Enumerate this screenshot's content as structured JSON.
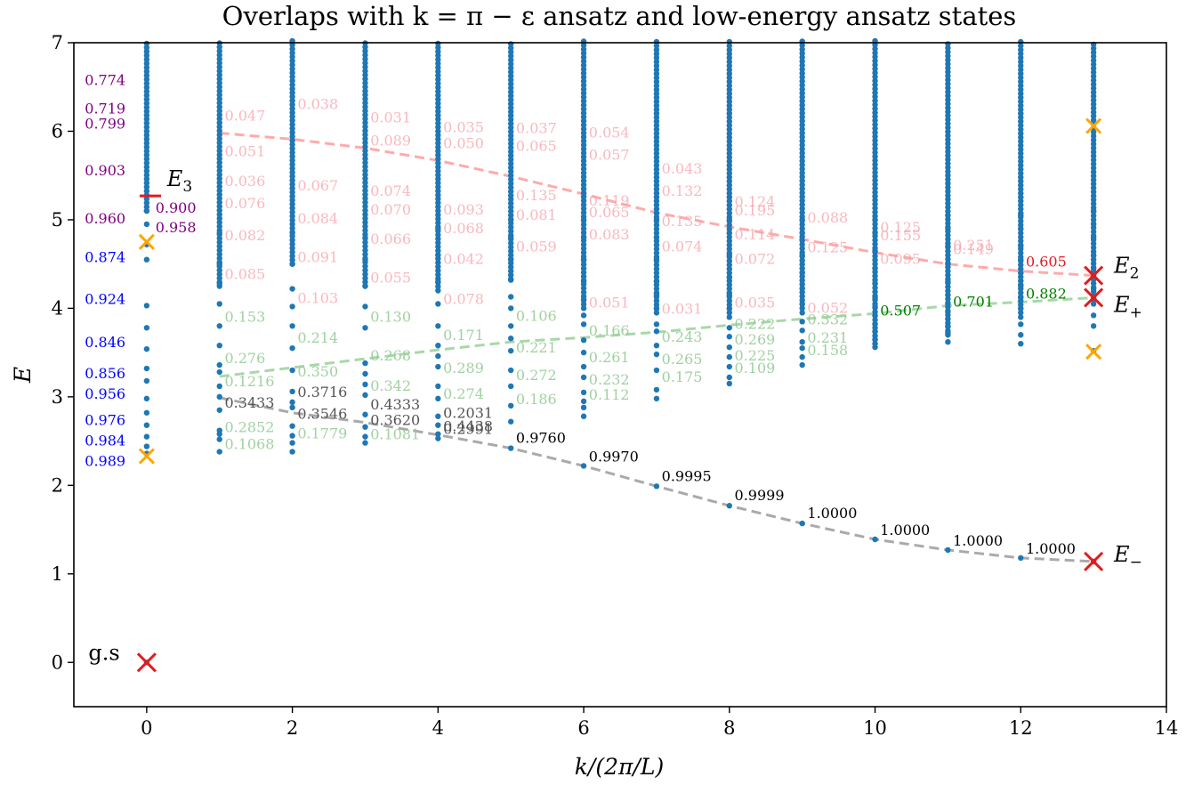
{
  "chart_data": {
    "type": "scatter",
    "title": "Overlaps with k = π − ε ansatz and low-energy ansatz states",
    "xlabel": "k/(2π/L)",
    "ylabel": "E",
    "xlim": [
      -1,
      14
    ],
    "ylim": [
      -0.5,
      7
    ],
    "x_ticks": [
      "0",
      "2",
      "4",
      "6",
      "8",
      "10",
      "12",
      "14"
    ],
    "y_ticks": [
      "0",
      "1",
      "2",
      "3",
      "4",
      "5",
      "6",
      "7"
    ],
    "grid": false,
    "colors": {
      "points": "#1f77b4",
      "red": "#e41a1c",
      "orange": "#ffa500",
      "green": "#008000",
      "blue": "#0000ff",
      "purple": "#800080",
      "pink": "#ff9999",
      "lightgreen": "#90c990",
      "gray": "#999999"
    },
    "spectrum_low": {
      "x": [
        0,
        1,
        2,
        3,
        4,
        5,
        6,
        7,
        8,
        9,
        10,
        11,
        12,
        13
      ],
      "y": [
        2.44,
        2.38,
        2.38,
        2.48,
        2.53,
        2.42,
        2.22,
        1.99,
        1.77,
        1.57,
        1.39,
        1.27,
        1.18,
        1.14
      ]
    },
    "spectrum_levels": [
      [
        0,
        2.36,
        2.44,
        2.55,
        2.68,
        2.82,
        2.98,
        3.18,
        3.32,
        3.54,
        3.78,
        4.03,
        4.55,
        4.72,
        4.95,
        5.1
      ],
      [
        2.38,
        2.52,
        2.58,
        2.62,
        2.85,
        3.0,
        3.12,
        3.28,
        3.36,
        3.58,
        3.8,
        4.05,
        4.28,
        4.5,
        4.85
      ],
      [
        2.38,
        2.48,
        2.56,
        2.67,
        2.88,
        2.94,
        3.06,
        3.3,
        3.55,
        3.8,
        4.02,
        4.22,
        4.5,
        4.85
      ],
      [
        2.48,
        2.55,
        2.66,
        2.8,
        3.02,
        3.14,
        3.26,
        3.38,
        3.78,
        4.02,
        4.25,
        4.55,
        4.8
      ],
      [
        2.53,
        2.58,
        2.68,
        2.78,
        2.98,
        3.12,
        3.34,
        3.46,
        3.58,
        3.8,
        4.05,
        4.3,
        4.6,
        4.9
      ],
      [
        2.42,
        2.72,
        2.9,
        3.12,
        3.3,
        3.52,
        3.66,
        3.8,
        4.0,
        4.13,
        4.32,
        4.55,
        4.8,
        5.0
      ],
      [
        2.22,
        2.78,
        2.88,
        2.95,
        3.05,
        3.22,
        3.34,
        3.5,
        3.64,
        3.82,
        3.92,
        4.1,
        4.3,
        4.55,
        4.8,
        5.0
      ],
      [
        1.99,
        2.98,
        3.08,
        3.3,
        3.48,
        3.58,
        3.74,
        3.82,
        4.0,
        4.15,
        4.3,
        4.55,
        4.8,
        5.0
      ],
      [
        1.77,
        3.15,
        3.22,
        3.34,
        3.45,
        3.56,
        3.68,
        3.78,
        3.9,
        4.0,
        4.15,
        4.35,
        4.6,
        4.85,
        5.0
      ],
      [
        1.57,
        3.36,
        3.45,
        3.55,
        3.62,
        3.75,
        3.85,
        3.95,
        4.05,
        4.22,
        4.4,
        4.6,
        4.85,
        5.0
      ],
      [
        1.39,
        3.56,
        3.65,
        3.74,
        3.82,
        3.92,
        4.02,
        4.12,
        4.28,
        4.45,
        4.65,
        4.85,
        5.0
      ],
      [
        1.27,
        3.62,
        3.72,
        3.8,
        3.88,
        3.96,
        4.05,
        4.15,
        4.3,
        4.5,
        4.7,
        4.9,
        5.05
      ],
      [
        1.18,
        3.6,
        3.7,
        3.82,
        3.9,
        4.0,
        4.12,
        4.25,
        4.4,
        4.55,
        4.7,
        4.9,
        5.05
      ],
      [
        1.14,
        3.52,
        3.8,
        3.92,
        4.05,
        4.12,
        4.22,
        4.34,
        4.45,
        4.6,
        4.8,
        4.95,
        5.1
      ]
    ],
    "curves": [
      {
        "name": "gray",
        "x": [
          1,
          2,
          3,
          4,
          5,
          6,
          7,
          8,
          9,
          10,
          11,
          12,
          13
        ],
        "y": [
          2.99,
          2.82,
          2.71,
          2.57,
          2.42,
          2.22,
          1.99,
          1.77,
          1.57,
          1.39,
          1.27,
          1.18,
          1.14
        ]
      },
      {
        "name": "green",
        "x": [
          1,
          2,
          3,
          4,
          5,
          6,
          7,
          8,
          9,
          10,
          11,
          12,
          13
        ],
        "y": [
          3.23,
          3.33,
          3.43,
          3.53,
          3.62,
          3.67,
          3.73,
          3.81,
          3.88,
          3.94,
          4.03,
          4.07,
          4.12
        ]
      },
      {
        "name": "pink",
        "x": [
          1,
          2,
          3,
          4,
          5,
          6,
          7,
          8,
          9,
          10,
          11,
          12,
          13
        ],
        "y": [
          5.98,
          5.91,
          5.81,
          5.67,
          5.49,
          5.29,
          5.08,
          4.92,
          4.78,
          4.63,
          4.5,
          4.42,
          4.37
        ]
      }
    ],
    "markers": [
      {
        "label": "g.s",
        "x": 0,
        "y": 0,
        "marker": "x",
        "color": "red"
      },
      {
        "label": "E_-",
        "x": 13,
        "y": 1.14,
        "marker": "x",
        "color": "red"
      },
      {
        "label": "E_+",
        "x": 13,
        "y": 4.12,
        "marker": "x",
        "color": "red"
      },
      {
        "label": "E_2",
        "x": 13,
        "y": 4.37,
        "marker": "x",
        "color": "red"
      },
      {
        "label": "E_3",
        "x": 0.05,
        "y": 5.27,
        "marker": "-",
        "color": "red"
      },
      {
        "label": "",
        "x": 0,
        "y": 2.33,
        "marker": "x",
        "color": "orange"
      },
      {
        "label": "",
        "x": 0,
        "y": 4.75,
        "marker": "x",
        "color": "orange"
      },
      {
        "label": "",
        "x": 13,
        "y": 3.51,
        "marker": "x",
        "color": "orange"
      },
      {
        "label": "",
        "x": 13,
        "y": 6.06,
        "marker": "x",
        "color": "orange"
      }
    ],
    "labels_k0": [
      {
        "text": "0.774",
        "y": 6.52,
        "color": "purple"
      },
      {
        "text": "0.719",
        "y": 6.2,
        "color": "purple"
      },
      {
        "text": "0.799",
        "y": 6.03,
        "color": "purple"
      },
      {
        "text": "0.903",
        "y": 5.5,
        "color": "purple"
      },
      {
        "text": "0.960",
        "y": 4.96,
        "color": "purple"
      },
      {
        "text": "0.900",
        "y": 5.08,
        "color": "purple"
      },
      {
        "text": "0.958",
        "y": 4.86,
        "color": "purple"
      },
      {
        "text": "0.874",
        "y": 4.52,
        "color": "blue"
      },
      {
        "text": "0.924",
        "y": 4.05,
        "color": "blue"
      },
      {
        "text": "0.846",
        "y": 3.56,
        "color": "blue"
      },
      {
        "text": "0.856",
        "y": 3.21,
        "color": "blue"
      },
      {
        "text": "0.956",
        "y": 2.98,
        "color": "blue"
      },
      {
        "text": "0.976",
        "y": 2.68,
        "color": "blue"
      },
      {
        "text": "0.984",
        "y": 2.45,
        "color": "blue"
      },
      {
        "text": "0.989",
        "y": 2.22,
        "color": "blue"
      }
    ],
    "labels_gray": [
      {
        "text": "0.3433",
        "x": 1,
        "y": 2.88
      },
      {
        "text": "0.3716",
        "x": 2,
        "y": 3.0
      },
      {
        "text": "0.3546",
        "x": 2,
        "y": 2.75
      },
      {
        "text": "0.4333",
        "x": 3,
        "y": 2.86
      },
      {
        "text": "0.3620",
        "x": 3,
        "y": 2.68
      },
      {
        "text": "0.2031",
        "x": 4,
        "y": 2.76
      },
      {
        "text": "0.4438",
        "x": 4,
        "y": 2.61
      },
      {
        "text": "0.2991",
        "x": 4,
        "y": 2.58
      },
      {
        "text": "0.9760",
        "x": 5,
        "y": 2.48
      },
      {
        "text": "0.9970",
        "x": 6,
        "y": 2.27
      },
      {
        "text": "0.9995",
        "x": 7,
        "y": 2.05
      },
      {
        "text": "0.9999",
        "x": 8,
        "y": 1.83
      },
      {
        "text": "1.0000",
        "x": 9,
        "y": 1.63
      },
      {
        "text": "1.0000",
        "x": 10,
        "y": 1.44
      },
      {
        "text": "1.0000",
        "x": 11,
        "y": 1.32
      },
      {
        "text": "1.0000",
        "x": 12,
        "y": 1.23
      }
    ],
    "labels_green": [
      {
        "text": "0.882",
        "x": 12,
        "y": 4.11
      },
      {
        "text": "0.701",
        "x": 11,
        "y": 4.02
      },
      {
        "text": "0.507",
        "x": 10,
        "y": 3.92
      },
      {
        "text": "0.332",
        "x": 9,
        "y": 3.82
      },
      {
        "text": "0.231",
        "x": 9,
        "y": 3.61
      },
      {
        "text": "0.158",
        "x": 9,
        "y": 3.47
      },
      {
        "text": "0.222",
        "x": 8,
        "y": 3.77
      },
      {
        "text": "0.269",
        "x": 8,
        "y": 3.59
      },
      {
        "text": "0.225",
        "x": 8,
        "y": 3.41
      },
      {
        "text": "0.109",
        "x": 8,
        "y": 3.27
      },
      {
        "text": "0.243",
        "x": 7,
        "y": 3.62
      },
      {
        "text": "0.265",
        "x": 7,
        "y": 3.37
      },
      {
        "text": "0.175",
        "x": 7,
        "y": 3.17
      },
      {
        "text": "0.166",
        "x": 6,
        "y": 3.69
      },
      {
        "text": "0.261",
        "x": 6,
        "y": 3.39
      },
      {
        "text": "0.232",
        "x": 6,
        "y": 3.14
      },
      {
        "text": "0.112",
        "x": 6,
        "y": 2.97
      },
      {
        "text": "0.106",
        "x": 5,
        "y": 3.86
      },
      {
        "text": "0.221",
        "x": 5,
        "y": 3.5
      },
      {
        "text": "0.272",
        "x": 5,
        "y": 3.19
      },
      {
        "text": "0.186",
        "x": 5,
        "y": 2.92
      },
      {
        "text": "0.171",
        "x": 4,
        "y": 3.64
      },
      {
        "text": "0.289",
        "x": 4,
        "y": 3.27
      },
      {
        "text": "0.274",
        "x": 4,
        "y": 2.98
      },
      {
        "text": "0.130",
        "x": 3,
        "y": 3.85
      },
      {
        "text": "0.268",
        "x": 3,
        "y": 3.41
      },
      {
        "text": "0.342",
        "x": 3,
        "y": 3.07
      },
      {
        "text": "0.214",
        "x": 2,
        "y": 3.61
      },
      {
        "text": "0.350",
        "x": 2,
        "y": 3.23
      },
      {
        "text": "0.153",
        "x": 1,
        "y": 3.85
      },
      {
        "text": "0.276",
        "x": 1,
        "y": 3.38
      },
      {
        "text": "0.2852",
        "x": 1,
        "y": 2.6
      },
      {
        "text": "0.1779",
        "x": 2,
        "y": 2.53
      },
      {
        "text": "0.1081",
        "x": 3,
        "y": 2.52
      },
      {
        "text": "0.1068",
        "x": 1,
        "y": 2.41
      },
      {
        "text": "0.1216",
        "x": 1,
        "y": 3.12
      }
    ],
    "labels_pink": [
      {
        "text": "0.605",
        "x": 12,
        "y": 4.47
      },
      {
        "text": "0.251",
        "x": 11,
        "y": 4.66
      },
      {
        "text": "0.149",
        "x": 11,
        "y": 4.61
      },
      {
        "text": "0.155",
        "x": 10,
        "y": 4.77
      },
      {
        "text": "0.125",
        "x": 10,
        "y": 4.86
      },
      {
        "text": "0.095",
        "x": 10,
        "y": 4.5
      },
      {
        "text": "0.088",
        "x": 9,
        "y": 4.97
      },
      {
        "text": "0.125",
        "x": 9,
        "y": 4.63
      },
      {
        "text": "0.195",
        "x": 8,
        "y": 5.05
      },
      {
        "text": "0.124",
        "x": 8,
        "y": 5.15
      },
      {
        "text": "0.114",
        "x": 8,
        "y": 4.78
      },
      {
        "text": "0.072",
        "x": 8,
        "y": 4.5
      },
      {
        "text": "0.132",
        "x": 7,
        "y": 5.27
      },
      {
        "text": "0.135",
        "x": 7,
        "y": 4.93
      },
      {
        "text": "0.074",
        "x": 7,
        "y": 4.64
      },
      {
        "text": "0.043",
        "x": 7,
        "y": 5.52
      },
      {
        "text": "0.083",
        "x": 6,
        "y": 4.78
      },
      {
        "text": "0.065",
        "x": 6,
        "y": 5.03
      },
      {
        "text": "0.119",
        "x": 6,
        "y": 5.16
      },
      {
        "text": "0.057",
        "x": 6,
        "y": 5.68
      },
      {
        "text": "0.054",
        "x": 6,
        "y": 5.93
      },
      {
        "text": "0.135",
        "x": 5,
        "y": 5.22
      },
      {
        "text": "0.081",
        "x": 5,
        "y": 5.0
      },
      {
        "text": "0.059",
        "x": 5,
        "y": 4.64
      },
      {
        "text": "0.065",
        "x": 5,
        "y": 5.78
      },
      {
        "text": "0.037",
        "x": 5,
        "y": 5.98
      },
      {
        "text": "0.093",
        "x": 4,
        "y": 5.06
      },
      {
        "text": "0.068",
        "x": 4,
        "y": 4.85
      },
      {
        "text": "0.050",
        "x": 4,
        "y": 5.81
      },
      {
        "text": "0.035",
        "x": 4,
        "y": 5.99
      },
      {
        "text": "0.042",
        "x": 4,
        "y": 4.5
      },
      {
        "text": "0.089",
        "x": 3,
        "y": 5.84
      },
      {
        "text": "0.074",
        "x": 3,
        "y": 5.27
      },
      {
        "text": "0.070",
        "x": 3,
        "y": 5.06
      },
      {
        "text": "0.066",
        "x": 3,
        "y": 4.73
      },
      {
        "text": "0.031",
        "x": 3,
        "y": 6.1
      },
      {
        "text": "0.084",
        "x": 2,
        "y": 4.96
      },
      {
        "text": "0.067",
        "x": 2,
        "y": 5.33
      },
      {
        "text": "0.091",
        "x": 2,
        "y": 4.52
      },
      {
        "text": "0.038",
        "x": 2,
        "y": 6.25
      },
      {
        "text": "0.076",
        "x": 1,
        "y": 5.13
      },
      {
        "text": "0.082",
        "x": 1,
        "y": 4.77
      },
      {
        "text": "0.047",
        "x": 1,
        "y": 6.12
      },
      {
        "text": "0.051",
        "x": 1,
        "y": 5.72
      },
      {
        "text": "0.036",
        "x": 1,
        "y": 5.38
      },
      {
        "text": "0.085",
        "x": 1,
        "y": 4.33
      },
      {
        "text": "0.055",
        "x": 3,
        "y": 4.29
      },
      {
        "text": "0.103",
        "x": 2,
        "y": 4.06
      },
      {
        "text": "0.078",
        "x": 4,
        "y": 4.05
      },
      {
        "text": "0.051",
        "x": 6,
        "y": 4.01
      },
      {
        "text": "0.031",
        "x": 7,
        "y": 3.94
      },
      {
        "text": "0.035",
        "x": 8,
        "y": 4.01
      },
      {
        "text": "0.052",
        "x": 9,
        "y": 3.95
      }
    ],
    "big_labels": {
      "gs": "g.s",
      "E3": "E",
      "E3_sub": "3",
      "E2": "E",
      "E2_sub": "2",
      "Ep": "E",
      "Ep_sub": "+",
      "Em": "E",
      "Em_sub": "−"
    }
  }
}
